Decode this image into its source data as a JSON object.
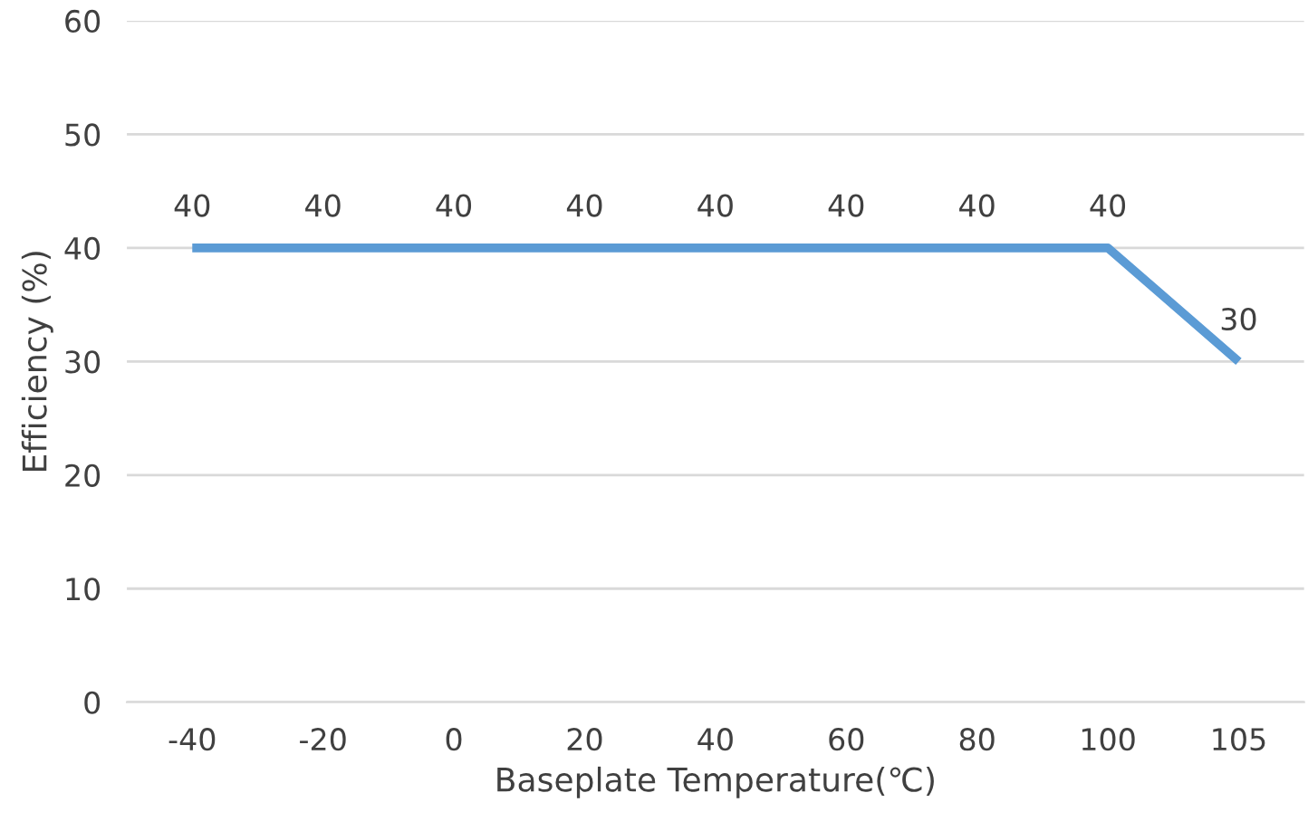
{
  "chart_data": {
    "type": "line",
    "xlabel": "Baseplate Temperature(℃)",
    "ylabel": "Efficiency (%)",
    "categories": [
      "-40",
      "-20",
      "0",
      "20",
      "40",
      "60",
      "80",
      "100",
      "105"
    ],
    "series": [
      {
        "color": "#5b9bd5",
        "values": [
          40,
          40,
          40,
          40,
          40,
          40,
          40,
          40,
          30
        ]
      }
    ],
    "ylim": [
      0,
      60
    ],
    "yticks": [
      0,
      10,
      20,
      30,
      40,
      50,
      60
    ],
    "grid": "y",
    "data_labels": true,
    "marker": "none",
    "line_style": "solid"
  }
}
